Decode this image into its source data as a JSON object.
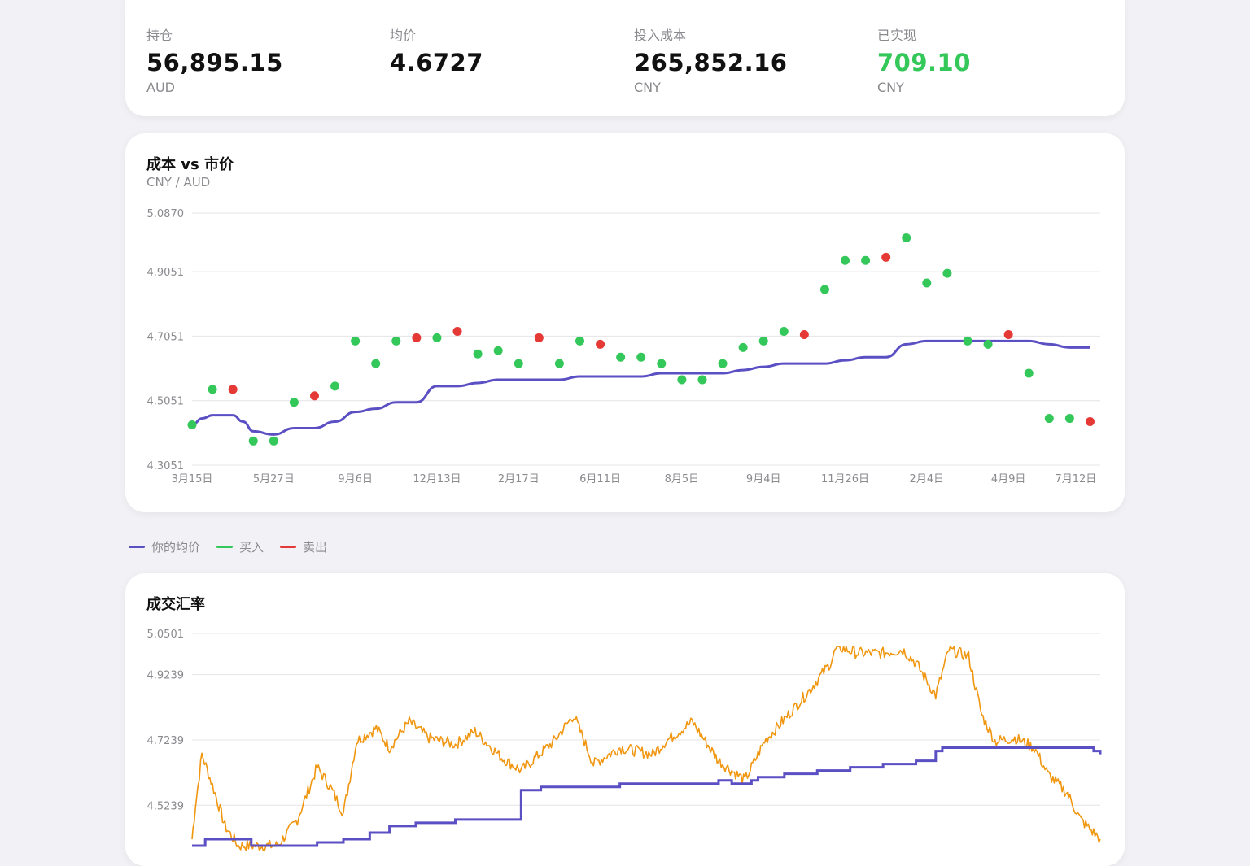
{
  "stats": [
    {
      "label": "持仓",
      "value": "56,895.15",
      "unit": "AUD"
    },
    {
      "label": "均价",
      "value": "4.6727",
      "unit": ""
    },
    {
      "label": "投入成本",
      "value": "265,852.16",
      "unit": "CNY"
    },
    {
      "label": "已实现",
      "value": "709.10",
      "unit": "CNY"
    }
  ],
  "colors": {
    "avg": "#5b4fc4",
    "buy": "#34c759",
    "sell": "#e53935",
    "rate": "#f0960f",
    "grid": "#e4e4e8"
  },
  "legend": [
    {
      "label": "你的均价",
      "color": "#5b4fc4"
    },
    {
      "label": "买入",
      "color": "#34c759"
    },
    {
      "label": "卖出",
      "color": "#e53935"
    }
  ],
  "chart_data": [
    {
      "type": "scatter",
      "title": "成本 vs 市价",
      "subtitle": "CNY / AUD",
      "y_ticks": [
        "5.0870",
        "4.9051",
        "4.7051",
        "4.5051",
        "4.3051"
      ],
      "ylim": [
        4.3051,
        5.087
      ],
      "x_ticks": [
        "3月15日",
        "5月27日",
        "9月6日",
        "12月13日",
        "2月17日",
        "6月11日",
        "8月5日",
        "9月4日",
        "11月26日",
        "2月4日",
        "4月9日",
        "7月12日"
      ],
      "x_tick_pos": [
        0,
        4,
        8,
        12,
        16,
        20,
        24,
        28,
        32,
        36,
        40,
        43.3
      ],
      "x_range": [
        0,
        44.5
      ],
      "trades": [
        {
          "x": 0,
          "y": 4.43,
          "side": "buy"
        },
        {
          "x": 1,
          "y": 4.54,
          "side": "buy"
        },
        {
          "x": 2,
          "y": 4.54,
          "side": "sell"
        },
        {
          "x": 3,
          "y": 4.38,
          "side": "buy"
        },
        {
          "x": 4,
          "y": 4.38,
          "side": "buy"
        },
        {
          "x": 5,
          "y": 4.5,
          "side": "buy"
        },
        {
          "x": 6,
          "y": 4.52,
          "side": "sell"
        },
        {
          "x": 7,
          "y": 4.55,
          "side": "buy"
        },
        {
          "x": 8,
          "y": 4.69,
          "side": "buy"
        },
        {
          "x": 9,
          "y": 4.62,
          "side": "buy"
        },
        {
          "x": 10,
          "y": 4.69,
          "side": "buy"
        },
        {
          "x": 11,
          "y": 4.7,
          "side": "sell"
        },
        {
          "x": 12,
          "y": 4.7,
          "side": "buy"
        },
        {
          "x": 13,
          "y": 4.72,
          "side": "sell"
        },
        {
          "x": 14,
          "y": 4.65,
          "side": "buy"
        },
        {
          "x": 15,
          "y": 4.66,
          "side": "buy"
        },
        {
          "x": 16,
          "y": 4.62,
          "side": "buy"
        },
        {
          "x": 17,
          "y": 4.7,
          "side": "sell"
        },
        {
          "x": 18,
          "y": 4.62,
          "side": "buy"
        },
        {
          "x": 19,
          "y": 4.69,
          "side": "buy"
        },
        {
          "x": 20,
          "y": 4.68,
          "side": "sell"
        },
        {
          "x": 21,
          "y": 4.64,
          "side": "buy"
        },
        {
          "x": 22,
          "y": 4.64,
          "side": "buy"
        },
        {
          "x": 23,
          "y": 4.62,
          "side": "buy"
        },
        {
          "x": 24,
          "y": 4.57,
          "side": "buy"
        },
        {
          "x": 25,
          "y": 4.57,
          "side": "buy"
        },
        {
          "x": 26,
          "y": 4.62,
          "side": "buy"
        },
        {
          "x": 27,
          "y": 4.67,
          "side": "buy"
        },
        {
          "x": 28,
          "y": 4.69,
          "side": "buy"
        },
        {
          "x": 29,
          "y": 4.72,
          "side": "buy"
        },
        {
          "x": 30,
          "y": 4.71,
          "side": "sell"
        },
        {
          "x": 31,
          "y": 4.85,
          "side": "buy"
        },
        {
          "x": 32,
          "y": 4.94,
          "side": "buy"
        },
        {
          "x": 33,
          "y": 4.94,
          "side": "buy"
        },
        {
          "x": 34,
          "y": 4.95,
          "side": "sell"
        },
        {
          "x": 35,
          "y": 5.01,
          "side": "buy"
        },
        {
          "x": 36,
          "y": 4.87,
          "side": "buy"
        },
        {
          "x": 37,
          "y": 4.9,
          "side": "buy"
        },
        {
          "x": 38,
          "y": 4.69,
          "side": "buy"
        },
        {
          "x": 39,
          "y": 4.68,
          "side": "buy"
        },
        {
          "x": 40,
          "y": 4.71,
          "side": "sell"
        },
        {
          "x": 41,
          "y": 4.59,
          "side": "buy"
        },
        {
          "x": 42,
          "y": 4.45,
          "side": "buy"
        },
        {
          "x": 43,
          "y": 4.45,
          "side": "buy"
        },
        {
          "x": 44,
          "y": 4.44,
          "side": "sell"
        }
      ],
      "avg_line": {
        "name": "你的均价",
        "points": [
          [
            0,
            4.43
          ],
          [
            0.5,
            4.45
          ],
          [
            1,
            4.46
          ],
          [
            2,
            4.46
          ],
          [
            2.5,
            4.44
          ],
          [
            3,
            4.41
          ],
          [
            4,
            4.4
          ],
          [
            5,
            4.42
          ],
          [
            6,
            4.42
          ],
          [
            7,
            4.44
          ],
          [
            8,
            4.47
          ],
          [
            9,
            4.48
          ],
          [
            10,
            4.5
          ],
          [
            11,
            4.5
          ],
          [
            12,
            4.55
          ],
          [
            13,
            4.55
          ],
          [
            14,
            4.56
          ],
          [
            15,
            4.57
          ],
          [
            16,
            4.57
          ],
          [
            17,
            4.57
          ],
          [
            18,
            4.57
          ],
          [
            19,
            4.58
          ],
          [
            20,
            4.58
          ],
          [
            21,
            4.58
          ],
          [
            22,
            4.58
          ],
          [
            23,
            4.59
          ],
          [
            24,
            4.59
          ],
          [
            25,
            4.59
          ],
          [
            26,
            4.59
          ],
          [
            27,
            4.6
          ],
          [
            28,
            4.61
          ],
          [
            29,
            4.62
          ],
          [
            30,
            4.62
          ],
          [
            31,
            4.62
          ],
          [
            32,
            4.63
          ],
          [
            33,
            4.64
          ],
          [
            34,
            4.64
          ],
          [
            35,
            4.68
          ],
          [
            36,
            4.69
          ],
          [
            37,
            4.69
          ],
          [
            38,
            4.69
          ],
          [
            39,
            4.69
          ],
          [
            40,
            4.69
          ],
          [
            41,
            4.69
          ],
          [
            42,
            4.68
          ],
          [
            43,
            4.67
          ],
          [
            44,
            4.67
          ]
        ]
      }
    },
    {
      "type": "line",
      "title": "成交汇率",
      "y_ticks": [
        "5.0501",
        "4.9239",
        "4.7239",
        "4.5239"
      ],
      "ylim": [
        4.4,
        5.0501
      ],
      "series": [
        {
          "name": "rate",
          "anchors": [
            [
              0,
              4.42
            ],
            [
              5,
              4.52
            ],
            [
              15,
              4.68
            ],
            [
              35,
              4.56
            ],
            [
              50,
              4.46
            ],
            [
              70,
              4.4
            ],
            [
              100,
              4.4
            ],
            [
              130,
              4.4
            ],
            [
              160,
              4.48
            ],
            [
              190,
              4.64
            ],
            [
              210,
              4.58
            ],
            [
              230,
              4.5
            ],
            [
              250,
              4.72
            ],
            [
              280,
              4.76
            ],
            [
              300,
              4.7
            ],
            [
              330,
              4.78
            ],
            [
              360,
              4.73
            ],
            [
              400,
              4.71
            ],
            [
              430,
              4.75
            ],
            [
              470,
              4.67
            ],
            [
              500,
              4.63
            ],
            [
              550,
              4.72
            ],
            [
              580,
              4.8
            ],
            [
              610,
              4.65
            ],
            [
              650,
              4.7
            ],
            [
              700,
              4.68
            ],
            [
              720,
              4.72
            ],
            [
              760,
              4.78
            ],
            [
              800,
              4.66
            ],
            [
              840,
              4.6
            ],
            [
              870,
              4.72
            ],
            [
              910,
              4.81
            ],
            [
              940,
              4.88
            ],
            [
              970,
              4.96
            ],
            [
              980,
              5.01
            ],
            [
              1010,
              4.99
            ],
            [
              1050,
              4.99
            ],
            [
              1080,
              5.0
            ],
            [
              1100,
              4.96
            ],
            [
              1130,
              4.86
            ],
            [
              1150,
              5.0
            ],
            [
              1180,
              4.98
            ],
            [
              1200,
              4.8
            ],
            [
              1220,
              4.72
            ],
            [
              1250,
              4.73
            ],
            [
              1280,
              4.7
            ],
            [
              1300,
              4.62
            ],
            [
              1330,
              4.56
            ],
            [
              1350,
              4.48
            ],
            [
              1380,
              4.42
            ]
          ]
        },
        {
          "name": "avg",
          "steps": [
            [
              0,
              4.4
            ],
            [
              20,
              4.42
            ],
            [
              90,
              4.4
            ],
            [
              140,
              4.4
            ],
            [
              190,
              4.41
            ],
            [
              230,
              4.42
            ],
            [
              270,
              4.44
            ],
            [
              300,
              4.46
            ],
            [
              340,
              4.47
            ],
            [
              400,
              4.48
            ],
            [
              500,
              4.57
            ],
            [
              530,
              4.58
            ],
            [
              580,
              4.58
            ],
            [
              650,
              4.59
            ],
            [
              700,
              4.59
            ],
            [
              800,
              4.6
            ],
            [
              820,
              4.59
            ],
            [
              850,
              4.6
            ],
            [
              860,
              4.61
            ],
            [
              900,
              4.62
            ],
            [
              950,
              4.63
            ],
            [
              1000,
              4.64
            ],
            [
              1050,
              4.65
            ],
            [
              1100,
              4.66
            ],
            [
              1130,
              4.69
            ],
            [
              1140,
              4.7
            ],
            [
              1170,
              4.7
            ],
            [
              1250,
              4.7
            ],
            [
              1370,
              4.69
            ],
            [
              1380,
              4.68
            ]
          ]
        }
      ]
    }
  ]
}
